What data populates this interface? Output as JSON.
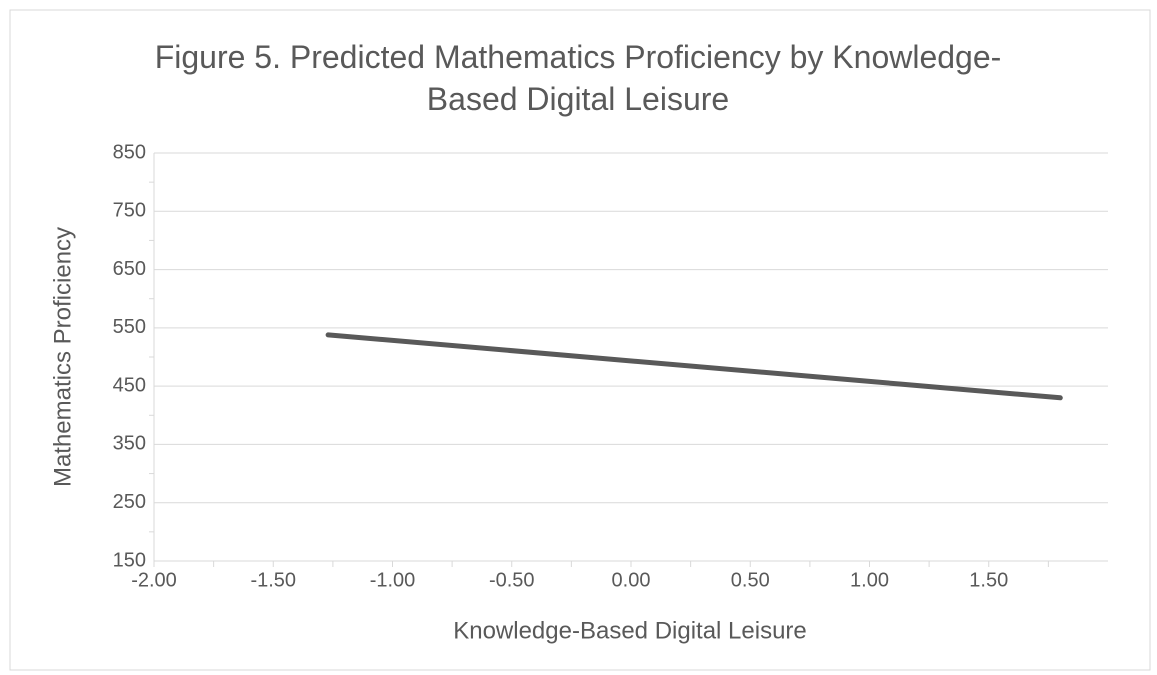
{
  "chart_data": {
    "type": "line",
    "title": "Figure 5. Predicted Mathematics Proficiency by Knowledge-Based Digital Leisure",
    "x_label": "Knowledge-Based Digital Leisure",
    "y_label": "Mathematics Proficiency",
    "series": [
      {
        "name": "Predicted",
        "color": "#595959",
        "x": [
          -1.27,
          1.8
        ],
        "values": [
          538,
          430
        ]
      }
    ],
    "xlim": [
      -2,
      2
    ],
    "xticks": [
      {
        "value": -2,
        "label": "-2.00"
      },
      {
        "value": -1.5,
        "label": "-1.50"
      },
      {
        "value": -1,
        "label": "-1.00"
      },
      {
        "value": -0.5,
        "label": "-0.50"
      },
      {
        "value": 0,
        "label": "0.00"
      },
      {
        "value": 0.5,
        "label": "0.50"
      },
      {
        "value": 1,
        "label": "1.00"
      },
      {
        "value": 1.5,
        "label": "1.50"
      }
    ],
    "ylim": [
      150,
      850
    ],
    "yticks": [
      150,
      250,
      350,
      450,
      550,
      650,
      750,
      850
    ],
    "grid": true
  }
}
